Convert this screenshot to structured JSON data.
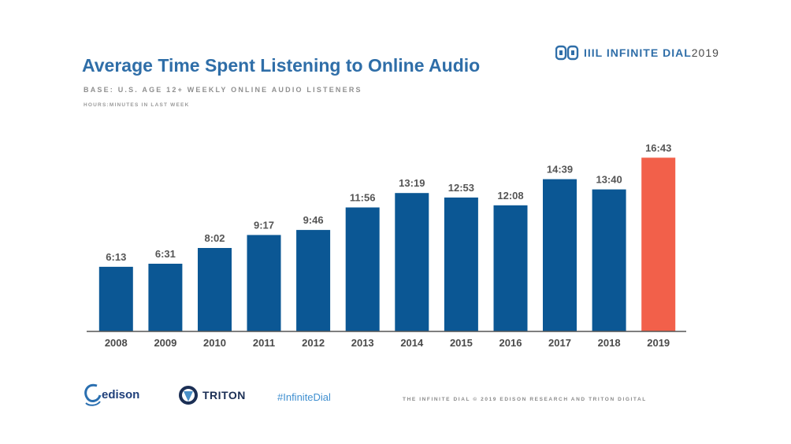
{
  "header": {
    "title": "Average Time Spent Listening to Online Audio",
    "subtitle": "BASE: U.S. AGE 12+ WEEKLY ONLINE AUDIO LISTENERS",
    "unit_note": "HOURS:MINUTES IN LAST WEEK",
    "brand_prefix": "IIIL INFINITE DIAL",
    "brand_year": "2019"
  },
  "footer": {
    "edison_label": "edison",
    "triton_label": "TRITON",
    "hashtag": "#InfiniteDial",
    "copyright": "THE INFINITE DIAL   © 2019 EDISON RESEARCH AND TRITON DIGITAL"
  },
  "colors": {
    "bar": "#0b5794",
    "highlight_bar": "#f2604a",
    "title": "#2f6ea8",
    "axis": "#555555"
  },
  "icons": {
    "brand_mark": "infinite-dial-mark-icon",
    "edison_mark": "edison-swirl-icon",
    "triton_mark": "triton-mark-icon"
  },
  "chart_data": {
    "type": "bar",
    "title": "Average Time Spent Listening to Online Audio",
    "subtitle": "BASE: U.S. AGE 12+ WEEKLY ONLINE AUDIO LISTENERS",
    "ylabel": "HOURS:MINUTES IN LAST WEEK",
    "xlabel": "",
    "categories": [
      "2008",
      "2009",
      "2010",
      "2011",
      "2012",
      "2013",
      "2014",
      "2015",
      "2016",
      "2017",
      "2018",
      "2019"
    ],
    "values": [
      6.217,
      6.517,
      8.033,
      9.283,
      9.767,
      11.933,
      13.317,
      12.883,
      12.133,
      14.65,
      13.667,
      16.717
    ],
    "value_labels": [
      "6:13",
      "6:31",
      "8:02",
      "9:17",
      "9:46",
      "11:56",
      "13:19",
      "12:53",
      "12:08",
      "14:39",
      "13:40",
      "16:43"
    ],
    "highlight_index": 11,
    "ylim": [
      0,
      17.5
    ],
    "grid": false,
    "legend": "none"
  }
}
